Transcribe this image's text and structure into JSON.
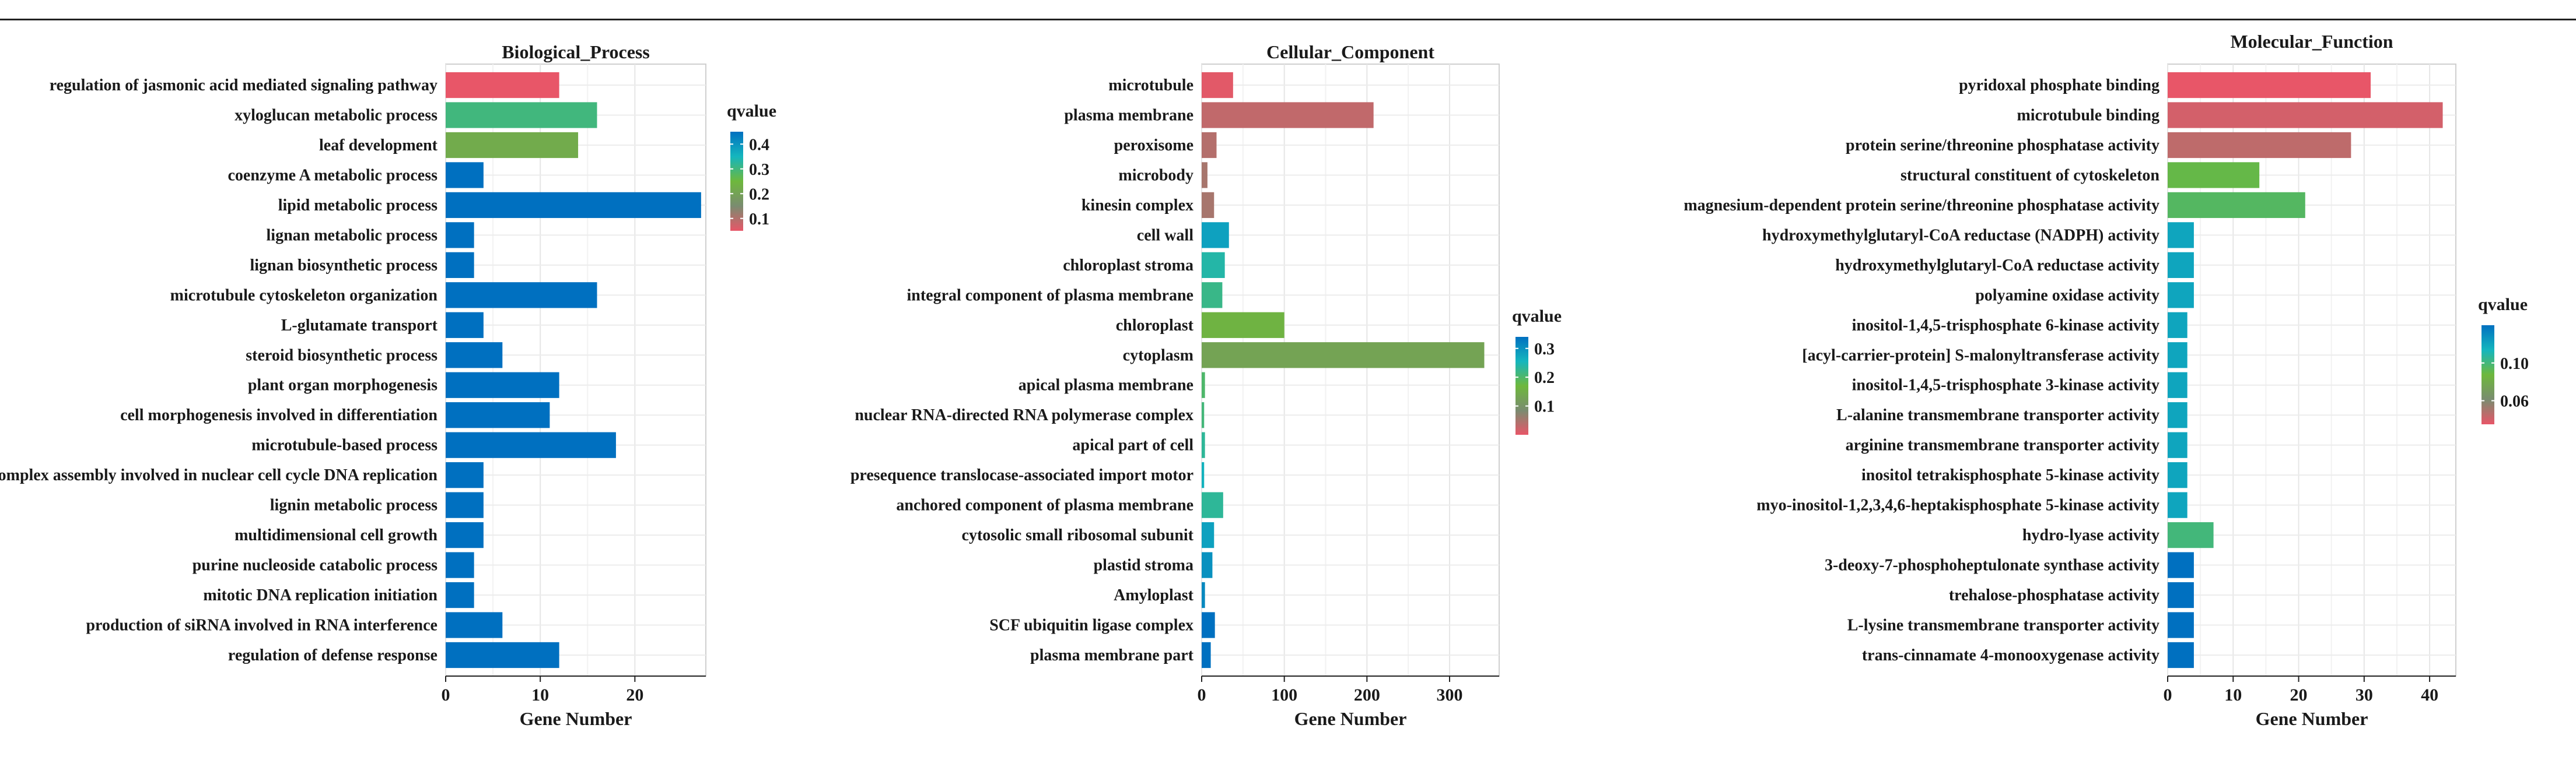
{
  "chart_data": [
    {
      "type": "bar",
      "orientation": "horizontal",
      "title": "Biological_Process",
      "xlabel": "Gene Number",
      "ylabel": "",
      "xlim": [
        0,
        27.5
      ],
      "xticks": [
        0,
        10,
        20
      ],
      "grid": true,
      "categories": [
        "regulation of jasmonic acid mediated signaling pathway",
        "xyloglucan metabolic process",
        "leaf development",
        "coenzyme A metabolic process",
        "lipid metabolic process",
        "lignan metabolic process",
        "lignan biosynthetic process",
        "microtubule cytoskeleton organization",
        "L-glutamate transport",
        "steroid biosynthetic process",
        "plant organ morphogenesis",
        "cell morphogenesis involved in differentiation",
        "microtubule-based process",
        "pre-replicative complex assembly involved in  nuclear cell cycle DNA replication",
        "lignin metabolic process",
        "multidimensional cell growth",
        "purine nucleoside catabolic process",
        "mitotic DNA replication initiation",
        "production of siRNA involved in RNA interference",
        "regulation of defense response"
      ],
      "values": [
        12,
        16,
        14,
        4,
        27,
        3,
        3,
        16,
        4,
        6,
        12,
        11,
        18,
        4,
        4,
        4,
        3,
        3,
        6,
        12
      ],
      "qvalues": [
        0.05,
        0.3,
        0.22,
        0.45,
        0.45,
        0.45,
        0.45,
        0.45,
        0.45,
        0.45,
        0.45,
        0.45,
        0.45,
        0.45,
        0.45,
        0.45,
        0.45,
        0.45,
        0.45,
        0.45
      ],
      "legend": {
        "title": "qvalue",
        "ticks": [
          "0.4",
          "0.3",
          "0.2",
          "0.1"
        ],
        "range": [
          0.05,
          0.45
        ],
        "placement": "right"
      }
    },
    {
      "type": "bar",
      "orientation": "horizontal",
      "title": "Cellular_Component",
      "xlabel": "Gene Number",
      "ylabel": "",
      "xlim": [
        0,
        360
      ],
      "xticks": [
        0,
        100,
        200,
        300
      ],
      "grid": true,
      "categories": [
        "microtubule",
        "plasma membrane",
        "peroxisome",
        "microbody",
        "kinesin complex",
        "cell wall",
        "chloroplast stroma",
        "integral component of plasma membrane",
        "chloroplast",
        "cytoplasm",
        "apical plasma membrane",
        "nuclear RNA-directed RNA polymerase complex",
        "apical part of cell",
        "presequence translocase-associated import motor",
        "anchored component of plasma membrane",
        "cytosolic small ribosomal subunit",
        "plastid stroma",
        "Amyloplast",
        "SCF ubiquitin ligase complex",
        "plasma membrane part"
      ],
      "values": [
        38,
        208,
        18,
        7,
        15,
        33,
        28,
        25,
        100,
        342,
        4,
        3,
        4,
        3,
        26,
        15,
        13,
        4,
        16,
        11
      ],
      "qvalues": [
        0.005,
        0.03,
        0.04,
        0.05,
        0.05,
        0.28,
        0.24,
        0.22,
        0.16,
        0.13,
        0.2,
        0.21,
        0.23,
        0.26,
        0.23,
        0.28,
        0.3,
        0.31,
        0.34,
        0.35
      ],
      "legend": {
        "title": "qvalue",
        "ticks": [
          "0.3",
          "0.2",
          "0.1"
        ],
        "range": [
          0.0,
          0.34
        ],
        "placement": "right"
      }
    },
    {
      "type": "bar",
      "orientation": "horizontal",
      "title": "Molecular_Function",
      "xlabel": "Gene Number",
      "ylabel": "",
      "xlim": [
        0,
        44
      ],
      "xticks": [
        0,
        10,
        20,
        30,
        40
      ],
      "grid": true,
      "categories": [
        "pyridoxal phosphate binding",
        "microtubule binding",
        "protein serine/threonine phosphatase activity",
        "structural constituent of cytoskeleton",
        "magnesium-dependent protein serine/threonine phosphatase activity",
        "hydroxymethylglutaryl-CoA reductase (NADPH) activity",
        "hydroxymethylglutaryl-CoA reductase activity",
        "polyamine oxidase activity",
        "inositol-1,4,5-trisphosphate 6-kinase activity",
        "[acyl-carrier-protein] S-malonyltransferase activity",
        "inositol-1,4,5-trisphosphate 3-kinase activity",
        "L-alanine transmembrane transporter activity",
        "arginine transmembrane transporter activity",
        "inositol tetrakisphosphate 5-kinase activity",
        "myo-inositol-1,2,3,4,6-heptakisphosphate 5-kinase activity",
        "hydro-lyase activity",
        "3-deoxy-7-phosphoheptulonate synthase activity",
        "trehalose-phosphatase activity",
        "L-lysine transmembrane transporter activity",
        "trans-cinnamate 4-monooxygenase activity"
      ],
      "values": [
        31,
        42,
        28,
        14,
        21,
        4,
        4,
        4,
        3,
        3,
        3,
        3,
        3,
        3,
        3,
        7,
        4,
        4,
        4,
        4
      ],
      "qvalues": [
        0.035,
        0.04,
        0.045,
        0.09,
        0.095,
        0.12,
        0.12,
        0.12,
        0.12,
        0.12,
        0.12,
        0.12,
        0.12,
        0.12,
        0.12,
        0.1,
        0.14,
        0.14,
        0.14,
        0.14
      ],
      "legend": {
        "title": "qvalue",
        "ticks": [
          "0.10",
          "0.06"
        ],
        "tick_values": [
          0.1,
          0.06
        ],
        "range": [
          0.035,
          0.14
        ],
        "placement": "right"
      }
    }
  ]
}
